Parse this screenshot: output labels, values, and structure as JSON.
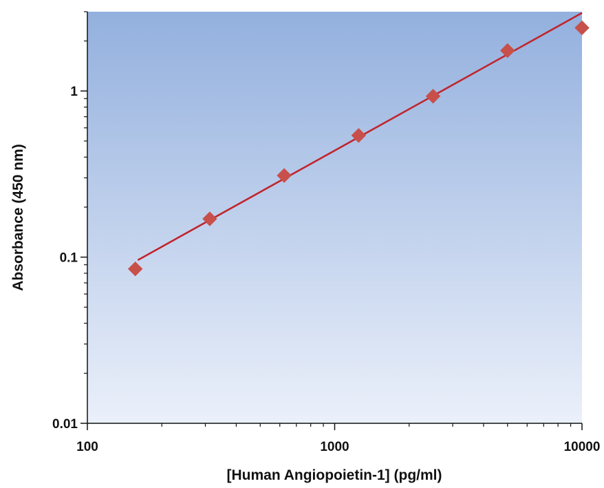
{
  "chart_data": {
    "type": "scatter",
    "title": "",
    "xlabel": "[Human Angiopoietin-1] (pg/ml)",
    "ylabel": "Absorbance (450 nm)",
    "xscale": "log",
    "yscale": "log",
    "xlim": [
      100,
      10000
    ],
    "ylim": [
      0.01,
      3
    ],
    "x_ticks": [
      100,
      1000,
      10000
    ],
    "x_tick_labels": [
      "100",
      "1000",
      "10000"
    ],
    "y_ticks": [
      0.01,
      0.1,
      1
    ],
    "y_tick_labels": [
      "0.01",
      "0.1",
      "1"
    ],
    "grid": false,
    "legend": "none",
    "series": [
      {
        "type": "scatter",
        "marker": "diamond",
        "x": [
          156.25,
          312.5,
          625,
          1250,
          2500,
          5000,
          10000
        ],
        "y": [
          0.085,
          0.17,
          0.31,
          0.54,
          0.93,
          1.75,
          2.4
        ]
      },
      {
        "type": "line",
        "x": [
          160,
          10000
        ],
        "y": [
          0.096,
          2.95
        ]
      }
    ],
    "colors": {
      "marker": "#c8504a",
      "line": "#c0252c",
      "plot_bg_top": "#93b0de",
      "plot_bg_bottom": "#ebf0fa",
      "axis": "#111111"
    }
  }
}
